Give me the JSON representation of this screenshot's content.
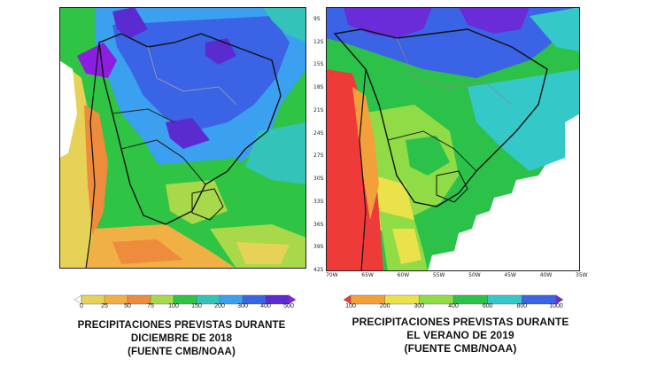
{
  "left_map": {
    "colorbar": {
      "ticks": [
        "0",
        "25",
        "50",
        "75",
        "100",
        "150",
        "200",
        "300",
        "400",
        "500"
      ],
      "colors": [
        "#ffffff",
        "#e6d256",
        "#f0b044",
        "#ef8b3c",
        "#a7d94a",
        "#2fc443",
        "#34c3b8",
        "#3aa0ef",
        "#3a63e6",
        "#5b2bd2",
        "#8b1ee0"
      ]
    },
    "caption": {
      "line1": "PRECIPITACIONES PREVISTAS DURANTE",
      "line2": "DICIEMBRE DE 2018",
      "line3": "(FUENTE CMB/NOAA)"
    }
  },
  "right_map": {
    "lat_labels": [
      "9S",
      "12S",
      "15S",
      "18S",
      "21S",
      "24S",
      "27S",
      "30S",
      "33S",
      "36S",
      "39S",
      "42S"
    ],
    "lon_labels": [
      "70W",
      "65W",
      "60W",
      "55W",
      "50W",
      "45W",
      "40W",
      "35W"
    ],
    "colorbar": {
      "ticks": [
        "100",
        "200",
        "300",
        "400",
        "600",
        "800",
        "1000"
      ],
      "colors": [
        "#ef3a3a",
        "#f2a13a",
        "#e9e24a",
        "#8fdc46",
        "#2cc24a",
        "#34c8c8",
        "#3a63e6",
        "#6a2cd8"
      ]
    },
    "caption": {
      "line1": "PRECIPITACIONES PREVISTAS DURANTE",
      "line2": "EL VERANO DE 2019",
      "line3": "(FUENTE CMB/NOAA)"
    }
  }
}
